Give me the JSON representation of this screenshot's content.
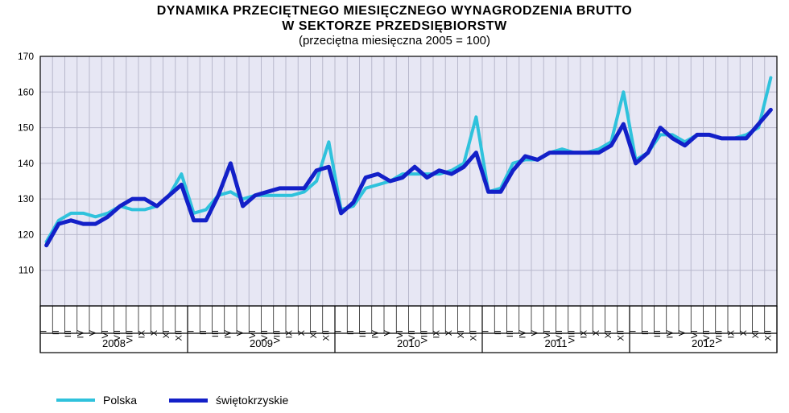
{
  "chart": {
    "type": "line",
    "title_line1": "DYNAMIKA  PRZECIĘTNEGO  MIESIĘCZNEGO  WYNAGRODZENIA  BRUTTO",
    "title_line2": "W  SEKTORZE  PRZEDSIĘBIORSTW",
    "subtitle": "(przeciętna  miesięczna  2005 = 100)",
    "title_fontsize": 16,
    "subtitle_fontsize": 15,
    "background_color": "#e7e7f4",
    "outer_background": "#ffffff",
    "grid_color": "#b8b8cc",
    "border_color": "#000000",
    "ylim": [
      100,
      170
    ],
    "ytick_step": 10,
    "yticks": [
      110,
      120,
      130,
      140,
      150,
      160,
      170
    ],
    "years": [
      "2008",
      "2009",
      "2010",
      "2011",
      "2012"
    ],
    "month_labels": [
      "I",
      "II",
      "III",
      "IV",
      "V",
      "VI",
      "VII",
      "VIII",
      "IX",
      "X",
      "XI",
      "XII"
    ],
    "series": [
      {
        "name": "Polska",
        "color": "#2fc2dc",
        "line_width": 4,
        "values": [
          118,
          124,
          126,
          126,
          125,
          126,
          128,
          127,
          127,
          128,
          131,
          137,
          126,
          127,
          131,
          132,
          130,
          131,
          131,
          131,
          131,
          132,
          135,
          146,
          127,
          128,
          133,
          134,
          135,
          137,
          137,
          137,
          137,
          138,
          140,
          153,
          132,
          133,
          140,
          141,
          141,
          143,
          144,
          143,
          143,
          144,
          146,
          160,
          141,
          143,
          148,
          148,
          146,
          148,
          148,
          147,
          147,
          148,
          150,
          164
        ]
      },
      {
        "name": "świętokrzyskie",
        "color": "#1320c8",
        "line_width": 5,
        "values": [
          117,
          123,
          124,
          123,
          123,
          125,
          128,
          130,
          130,
          128,
          131,
          134,
          124,
          124,
          131,
          140,
          128,
          131,
          132,
          133,
          133,
          133,
          138,
          139,
          126,
          129,
          136,
          137,
          135,
          136,
          139,
          136,
          138,
          137,
          139,
          143,
          132,
          132,
          138,
          142,
          141,
          143,
          143,
          143,
          143,
          143,
          145,
          151,
          140,
          143,
          150,
          147,
          145,
          148,
          148,
          147,
          147,
          147,
          151,
          155
        ]
      }
    ],
    "axis_font_size": 12,
    "tick_color": "#000000"
  },
  "legend": {
    "items": [
      {
        "label": "Polska",
        "color": "#2fc2dc",
        "width": 4
      },
      {
        "label": "świętokrzyskie",
        "color": "#1320c8",
        "width": 5
      }
    ]
  }
}
